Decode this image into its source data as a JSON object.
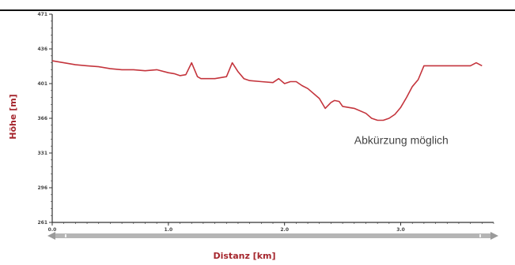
{
  "chart_data": {
    "type": "line",
    "xlabel": "Distanz [km]",
    "ylabel": "Höhe [m]",
    "xlim": [
      0,
      3.8
    ],
    "ylim": [
      261,
      471
    ],
    "x_ticks": [
      "0.0",
      "1.0",
      "2.0",
      "3.0"
    ],
    "y_ticks": [
      "471",
      "436",
      "401",
      "366",
      "331",
      "296",
      "261"
    ],
    "grid": false,
    "annotation": {
      "text": "Abkürzung möglich",
      "x": 2.6,
      "y": 340
    },
    "colors": {
      "line": "#c4343c",
      "axis_title": "#a5262d",
      "range_bar": "#b5b5b5"
    },
    "series": [
      {
        "x": [
          0,
          0.1,
          0.2,
          0.3,
          0.4,
          0.5,
          0.6,
          0.7,
          0.8,
          0.9,
          1.0,
          1.05,
          1.1,
          1.15,
          1.2,
          1.25,
          1.28,
          1.32,
          1.4,
          1.5,
          1.55,
          1.6,
          1.65,
          1.7,
          1.8,
          1.9,
          1.95,
          2.0,
          2.05,
          2.1,
          2.15,
          2.2,
          2.3,
          2.35,
          2.4,
          2.43,
          2.47,
          2.5,
          2.55,
          2.6,
          2.7,
          2.75,
          2.8,
          2.85,
          2.9,
          2.95,
          3.0,
          3.05,
          3.1,
          3.15,
          3.2,
          3.3,
          3.4,
          3.5,
          3.6,
          3.65,
          3.7
        ],
        "y": [
          424,
          422,
          420,
          419,
          418,
          416,
          415,
          415,
          414,
          415,
          412,
          411,
          409,
          410,
          422,
          408,
          406,
          406,
          406,
          408,
          422,
          413,
          406,
          404,
          403,
          402,
          406,
          401,
          403,
          403,
          399,
          396,
          386,
          376,
          382,
          384,
          383,
          378,
          377,
          376,
          371,
          366,
          364,
          364,
          366,
          370,
          377,
          387,
          398,
          405,
          419,
          419,
          419,
          419,
          419,
          422,
          419
        ]
      }
    ]
  }
}
